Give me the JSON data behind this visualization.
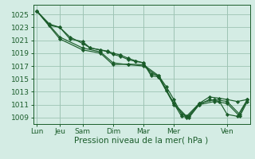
{
  "background_color": "#d4ece4",
  "grid_color": "#9ec4b4",
  "line_color": "#1a5c2a",
  "marker_color": "#1a5c2a",
  "xlabel": "Pression niveau de la mer( hPa )",
  "xlabel_fontsize": 7.5,
  "tick_label_fontsize": 6.5,
  "ylim": [
    1008.0,
    1026.5
  ],
  "yticks": [
    1009,
    1011,
    1013,
    1015,
    1017,
    1019,
    1021,
    1023,
    1025
  ],
  "xlim": [
    -0.15,
    8.4
  ],
  "day_tick_pos": [
    0.0,
    0.9,
    1.8,
    3.0,
    4.2,
    5.4,
    7.5
  ],
  "day_tick_labels": [
    "Lun",
    "Jeu",
    "Sam",
    "Dim",
    "Mar",
    "Mer",
    "Ven"
  ],
  "series": [
    {
      "x": [
        0.0,
        0.5,
        0.9,
        1.3,
        1.8,
        2.1,
        2.5,
        2.8,
        3.0,
        3.3,
        3.6,
        3.9,
        4.2,
        4.5,
        4.8,
        5.1,
        5.4,
        5.7,
        6.0,
        6.4,
        6.8,
        7.2,
        7.5,
        7.9,
        8.3
      ],
      "y": [
        1025.5,
        1023.5,
        1023.0,
        1021.2,
        1020.8,
        1019.8,
        1019.5,
        1019.3,
        1019.0,
        1018.7,
        1018.2,
        1017.8,
        1017.5,
        1015.5,
        1015.3,
        1013.2,
        1011.2,
        1009.2,
        1009.0,
        1011.0,
        1011.8,
        1011.5,
        1009.5,
        1009.2,
        1011.8
      ]
    },
    {
      "x": [
        0.0,
        0.5,
        0.9,
        1.3,
        1.8,
        2.1,
        2.5,
        2.8,
        3.0,
        3.3,
        3.6,
        3.9,
        4.2,
        4.5,
        4.8,
        5.1,
        5.4,
        5.7,
        6.0,
        6.4,
        6.8,
        7.2,
        7.5,
        7.9,
        8.3
      ],
      "y": [
        1025.5,
        1023.3,
        1023.0,
        1021.5,
        1020.5,
        1019.8,
        1019.5,
        1019.2,
        1018.8,
        1018.5,
        1018.0,
        1017.7,
        1017.5,
        1015.8,
        1015.5,
        1013.8,
        1011.8,
        1009.5,
        1009.2,
        1011.2,
        1012.2,
        1012.0,
        1011.8,
        1011.5,
        1011.8
      ]
    },
    {
      "x": [
        0.0,
        0.9,
        1.8,
        2.5,
        3.0,
        3.6,
        4.2,
        4.8,
        5.4,
        5.9,
        6.4,
        7.0,
        7.5,
        8.0,
        8.3
      ],
      "y": [
        1025.5,
        1021.2,
        1019.5,
        1019.0,
        1017.2,
        1017.3,
        1017.2,
        1015.5,
        1011.2,
        1009.2,
        1011.2,
        1011.8,
        1011.5,
        1009.5,
        1011.8
      ]
    },
    {
      "x": [
        0.0,
        0.9,
        1.8,
        2.5,
        3.0,
        3.6,
        4.2,
        4.8,
        5.4,
        5.9,
        6.4,
        7.0,
        7.5,
        8.0,
        8.3
      ],
      "y": [
        1025.5,
        1021.5,
        1019.8,
        1019.2,
        1017.5,
        1017.2,
        1017.0,
        1015.3,
        1011.0,
        1009.0,
        1011.0,
        1011.5,
        1011.2,
        1009.2,
        1011.5
      ]
    }
  ]
}
